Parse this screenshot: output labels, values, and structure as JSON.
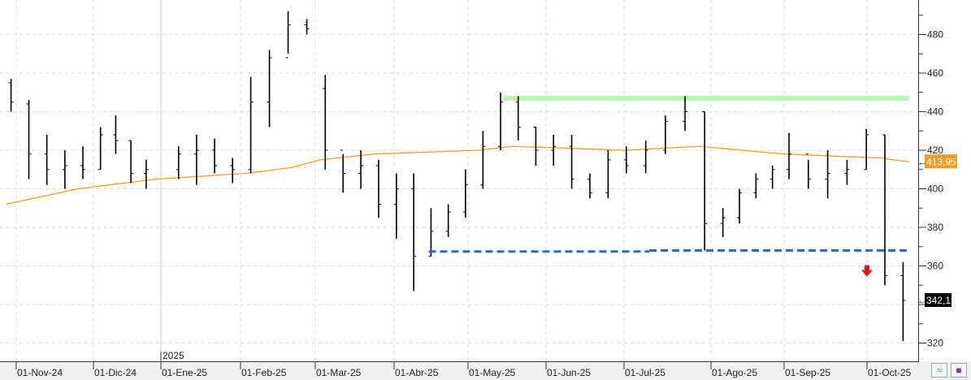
{
  "chart_data": {
    "type": "ohlc",
    "title": "",
    "xlabel": "",
    "ylabel": "",
    "ylim": [
      312,
      495
    ],
    "y_ticks": [
      320,
      340,
      360,
      380,
      400,
      420,
      440,
      460,
      480
    ],
    "y_tick_labels": [
      "320",
      "",
      "360",
      "380",
      "400",
      "420",
      "440",
      "460",
      "480"
    ],
    "x_ticks": [
      {
        "date": "2024-11-01",
        "label": "01-Nov-24"
      },
      {
        "date": "2024-12-01",
        "label": "01-Dic-24"
      },
      {
        "date": "2025-01-01",
        "label": "01-Ene-25"
      },
      {
        "date": "2025-02-01",
        "label": "01-Feb-25"
      },
      {
        "date": "2025-03-01",
        "label": "01-Mar-25"
      },
      {
        "date": "2025-04-01",
        "label": "01-Abr-25"
      },
      {
        "date": "2025-05-01",
        "label": "01-May-25"
      },
      {
        "date": "2025-06-01",
        "label": "01-Jun-25"
      },
      {
        "date": "2025-07-01",
        "label": "01-Jul-25"
      },
      {
        "date": "2025-08-01",
        "label": "01-Ago-25"
      },
      {
        "date": "2025-09-01",
        "label": "01-Sep-25"
      },
      {
        "date": "2025-10-01",
        "label": "01-Oct-25"
      }
    ],
    "year_marker": {
      "date": "2025-01-01",
      "label": "2025"
    },
    "grid": true,
    "bars_columns": [
      "date",
      "open",
      "high",
      "low",
      "close"
    ],
    "bars": [
      [
        "2024-10-28",
        455,
        457,
        440,
        445
      ],
      [
        "2024-11-04",
        444,
        446,
        405,
        418
      ],
      [
        "2024-11-11",
        418,
        428,
        402,
        410
      ],
      [
        "2024-11-18",
        410,
        420,
        400,
        412
      ],
      [
        "2024-11-25",
        412,
        422,
        405,
        410
      ],
      [
        "2024-12-02",
        410,
        432,
        410,
        428
      ],
      [
        "2024-12-09",
        428,
        438,
        418,
        425
      ],
      [
        "2024-12-16",
        425,
        425,
        403,
        408
      ],
      [
        "2024-12-23",
        408,
        415,
        400,
        410
      ],
      [
        "2025-01-06",
        410,
        422,
        405,
        418
      ],
      [
        "2025-01-13",
        418,
        428,
        402,
        420
      ],
      [
        "2025-01-20",
        420,
        426,
        408,
        412
      ],
      [
        "2025-01-27",
        412,
        416,
        403,
        410
      ],
      [
        "2025-02-03",
        410,
        458,
        408,
        445
      ],
      [
        "2025-02-10",
        445,
        472,
        432,
        468
      ],
      [
        "2025-02-17",
        468,
        492,
        470,
        485
      ],
      [
        "2025-02-24",
        485,
        488,
        480,
        483
      ],
      [
        "2025-03-03",
        452,
        459,
        410,
        420
      ],
      [
        "2025-03-10",
        420,
        418,
        398,
        408
      ],
      [
        "2025-03-17",
        408,
        420,
        400,
        412
      ],
      [
        "2025-03-24",
        412,
        415,
        385,
        392
      ],
      [
        "2025-03-31",
        392,
        408,
        374,
        400
      ],
      [
        "2025-04-07",
        400,
        408,
        347,
        365
      ],
      [
        "2025-04-14",
        365,
        390,
        365,
        378
      ],
      [
        "2025-04-21",
        378,
        392,
        375,
        388
      ],
      [
        "2025-04-28",
        388,
        410,
        385,
        402
      ],
      [
        "2025-05-05",
        402,
        430,
        400,
        422
      ],
      [
        "2025-05-12",
        422,
        450,
        420,
        445
      ],
      [
        "2025-05-19",
        445,
        448,
        425,
        432
      ],
      [
        "2025-05-26",
        432,
        432,
        412,
        420
      ],
      [
        "2025-06-02",
        420,
        428,
        412,
        422
      ],
      [
        "2025-06-09",
        422,
        428,
        400,
        405
      ],
      [
        "2025-06-16",
        405,
        408,
        395,
        398
      ],
      [
        "2025-06-23",
        398,
        420,
        395,
        415
      ],
      [
        "2025-06-30",
        415,
        422,
        408,
        412
      ],
      [
        "2025-07-07",
        412,
        425,
        408,
        420
      ],
      [
        "2025-07-14",
        420,
        438,
        418,
        435
      ],
      [
        "2025-07-21",
        435,
        448,
        430,
        440
      ],
      [
        "2025-07-28",
        440,
        440,
        368,
        382
      ],
      [
        "2025-08-04",
        382,
        390,
        375,
        385
      ],
      [
        "2025-08-11",
        385,
        400,
        382,
        398
      ],
      [
        "2025-08-18",
        398,
        408,
        395,
        405
      ],
      [
        "2025-08-25",
        405,
        412,
        400,
        410
      ],
      [
        "2025-09-01",
        410,
        429,
        405,
        418
      ],
      [
        "2025-09-08",
        418,
        415,
        400,
        405
      ],
      [
        "2025-09-15",
        405,
        420,
        395,
        408
      ],
      [
        "2025-09-22",
        408,
        415,
        402,
        410
      ],
      [
        "2025-09-29",
        410,
        431,
        410,
        428
      ],
      [
        "2025-10-06",
        428,
        428,
        350,
        355
      ],
      [
        "2025-10-13",
        355,
        362,
        321,
        342.1
      ]
    ],
    "moving_average": {
      "color": "#f39c1e",
      "points": [
        [
          "2024-10-28",
          392
        ],
        [
          "2024-11-25",
          400
        ],
        [
          "2024-12-30",
          405
        ],
        [
          "2025-02-03",
          408
        ],
        [
          "2025-02-20",
          411
        ],
        [
          "2025-03-03",
          415
        ],
        [
          "2025-03-24",
          418
        ],
        [
          "2025-05-05",
          420
        ],
        [
          "2025-05-19",
          422
        ],
        [
          "2025-07-01",
          420
        ],
        [
          "2025-07-28",
          422
        ],
        [
          "2025-09-01",
          418
        ],
        [
          "2025-10-06",
          416
        ],
        [
          "2025-10-17",
          414
        ]
      ],
      "last_value_label": "413,95"
    },
    "last_price_label": "342,1",
    "resistance_line": {
      "color": "#b7f5b0",
      "value": 447,
      "from": "2025-05-15",
      "to": "2025-10-17"
    },
    "support_lines": {
      "color": "#1f6fd6",
      "style": "dashed",
      "segments": [
        {
          "value": 367.5,
          "from": "2025-04-15",
          "to": "2025-07-10"
        },
        {
          "value": 368,
          "from": "2025-07-10",
          "to": "2025-10-17"
        }
      ]
    },
    "signal_arrow": {
      "type": "down",
      "color": "#e8140f",
      "date": "2025-10-01",
      "value": 357
    }
  },
  "toolbar": {
    "indicator_icon": "wave-icon",
    "save_icon": "floppy-icon"
  }
}
